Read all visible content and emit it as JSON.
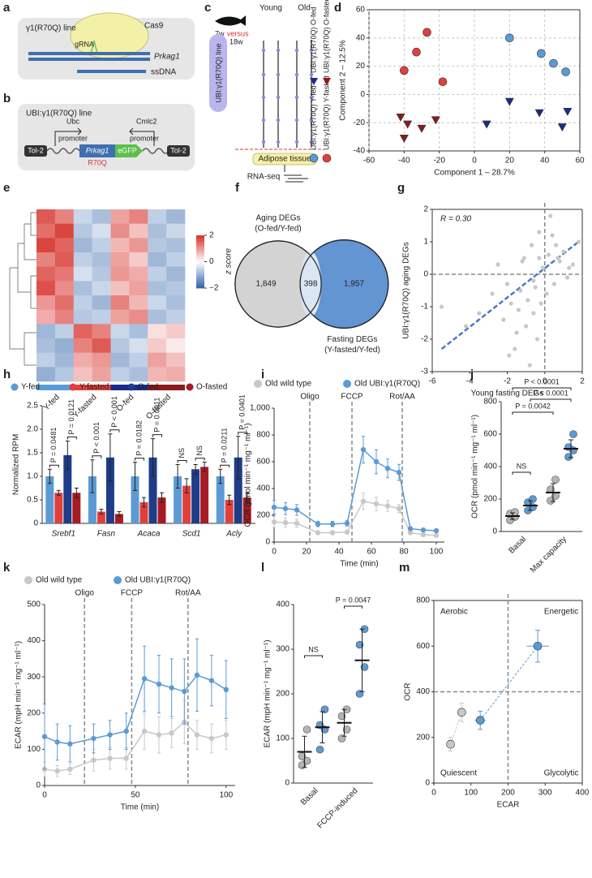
{
  "diagrams": {
    "a": {
      "label": "a",
      "title": "γ1(R70Q) line",
      "cas9": "Cas9",
      "grna": "gRNA",
      "gene": "Prkag1",
      "ssdna": "ssDNA"
    },
    "b": {
      "label": "b",
      "title": "UBI:γ1(R70Q) line",
      "promoter1": [
        "Ubc",
        "promoter"
      ],
      "promoter2": [
        "Cmlc2",
        "promoter"
      ],
      "tol2_left": "Tol-2",
      "gene": "Prkag1",
      "reporter": "eGFP",
      "tol2_right": "Tol-2",
      "mutation": "R70Q"
    },
    "c": {
      "label": "c",
      "groups": [
        "Young",
        "Old"
      ],
      "age_young": "7w",
      "versus": "versus",
      "age_old": "18w",
      "conditions": [
        "Fed",
        "Fasted",
        "Fed",
        "Fasted"
      ],
      "days": [
        "Day 1",
        "Day 2",
        "Day 3",
        "Day 4",
        "Day 5"
      ],
      "line": "UBI:γ1(R70Q) line",
      "tissue": "Adipose tissue",
      "assay": "RNA-seq"
    }
  },
  "chart_data": [
    {
      "label": "d",
      "type": "scatter",
      "xlabel": "Component 1 – 28.7%",
      "ylabel": "Component 2 – 12.5%",
      "xlim": [
        -60,
        60
      ],
      "xticks": [
        -60,
        -40,
        -20,
        0,
        20,
        40,
        60
      ],
      "ylim": [
        -40,
        60
      ],
      "yticks": [
        -40,
        -20,
        0,
        20,
        40,
        60
      ],
      "grid": true,
      "series": [
        {
          "name": "UBI:γ1(R70Q) Y-fed",
          "color": "#5b9bd5",
          "marker": "circle",
          "x": [
            20,
            38,
            45,
            52
          ],
          "y": [
            40,
            29,
            22,
            16
          ]
        },
        {
          "name": "UBI:γ1(R70Q) Y-fasted",
          "color": "#e0403a",
          "marker": "circle",
          "x": [
            -40,
            -33,
            -27,
            -18
          ],
          "y": [
            17,
            30,
            44,
            9
          ]
        },
        {
          "name": "UBI:γ1(R70Q) O-fed",
          "color": "#1a2a8c",
          "marker": "triangle",
          "x": [
            7,
            20,
            37,
            50,
            53
          ],
          "y": [
            -21,
            -5,
            -13,
            -23,
            -12
          ]
        },
        {
          "name": "UBI:γ1(R70Q) O-fasted",
          "color": "#8b1a1a",
          "marker": "triangle",
          "x": [
            -42,
            -40,
            -38,
            -30,
            -22
          ],
          "y": [
            -16,
            -31,
            -21,
            -24,
            -18
          ]
        }
      ]
    },
    {
      "label": "e",
      "type": "heatmap",
      "categories": [
        "Y-fed",
        "Y-fasted",
        "O-fed",
        "O-fasted"
      ],
      "colors": [
        "#5b9bd5",
        "#e0403a",
        "#1a2a8c",
        "#8b1a1a"
      ],
      "colorbar_label": "z score",
      "clim": [
        -2,
        2
      ],
      "cticks": [
        2,
        0,
        {
          "value": -2,
          "label": "−2"
        }
      ],
      "values": [
        [
          1.6,
          1.2,
          -0.5,
          -0.8,
          0.9,
          1.2,
          -0.6,
          -0.9
        ],
        [
          1.4,
          1.8,
          -0.7,
          -0.4,
          1.1,
          0.6,
          -0.8,
          -0.5
        ],
        [
          1.8,
          1.5,
          -0.9,
          -0.6,
          0.7,
          1.0,
          -0.7,
          -0.8
        ],
        [
          1.2,
          1.6,
          -0.6,
          -0.8,
          0.9,
          0.5,
          -0.9,
          -0.6
        ],
        [
          1.5,
          1.3,
          -0.4,
          -0.7,
          1.0,
          0.8,
          -0.6,
          -0.9
        ],
        [
          1.7,
          1.1,
          -0.8,
          -0.5,
          0.6,
          0.9,
          -0.8,
          -0.7
        ],
        [
          1.0,
          1.4,
          -0.6,
          -0.9,
          1.2,
          0.7,
          -0.5,
          -0.8
        ],
        [
          0.8,
          1.2,
          -0.7,
          -0.6,
          0.9,
          1.1,
          -0.8,
          -0.6
        ],
        [
          -0.9,
          -0.6,
          1.5,
          1.2,
          -0.5,
          -0.8,
          0.3,
          0.5
        ],
        [
          -0.8,
          -1.0,
          1.2,
          1.6,
          -0.7,
          -0.4,
          0.5,
          0.2
        ],
        [
          -0.6,
          -0.9,
          0.8,
          1.0,
          -0.9,
          -0.6,
          0.9,
          0.6
        ],
        [
          -1.0,
          -0.7,
          0.6,
          0.9,
          -0.6,
          -0.8,
          0.7,
          0.8
        ]
      ]
    },
    {
      "label": "f",
      "type": "venn",
      "sets": [
        {
          "name": "Aging DEGs",
          "subtitle": "(O-fed/Y-fed)",
          "color": "#d3d3d3"
        },
        {
          "name": "Fasting DEGs",
          "subtitle": "(Y-fasted/Y-fed)",
          "color": "#5b8fd0"
        }
      ],
      "values": [
        1849,
        398,
        1957
      ],
      "value_labels": [
        "1,849",
        "398",
        "1,957"
      ]
    },
    {
      "label": "g",
      "type": "scatter",
      "xlabel": "Young fasting DEGs",
      "ylabel": "UBI:γ1(R70Q) aging DEGs",
      "annotation": "R = 0.30",
      "xlim": [
        -6,
        2
      ],
      "xticks": [
        -6,
        -4,
        -2,
        0,
        2
      ],
      "ylim": [
        -3,
        2
      ],
      "yticks": [
        -3,
        -2,
        -1,
        0,
        1,
        2
      ],
      "hlines": [
        0
      ],
      "vlines": [
        0
      ],
      "fit_line": {
        "color": "#4a78c8",
        "x": [
          -5.5,
          1.8
        ],
        "y": [
          -2.3,
          1.0
        ]
      },
      "series": [
        {
          "color": "#c8c8c8",
          "marker": "circle",
          "x": [
            -5.5,
            -4.2,
            -3.5,
            -2.8,
            -2.5,
            -2.2,
            -2.0,
            -1.8,
            -1.6,
            -1.5,
            -1.3,
            -1.2,
            -1.0,
            -0.9,
            -0.8,
            -0.7,
            -0.6,
            -0.5,
            -0.4,
            -0.3,
            -0.2,
            -0.1,
            0.2,
            0.3,
            0.4,
            0.5,
            0.6,
            0.8,
            1.0,
            1.2,
            1.5,
            1.8,
            -1.9,
            -1.4,
            -1.1,
            -0.6,
            -0.3,
            0.1,
            0.7,
            1.3
          ],
          "y": [
            -1.0,
            -1.6,
            -1.2,
            -0.6,
            0.3,
            -1.4,
            -0.3,
            -0.9,
            -2.3,
            -1.8,
            -0.5,
            0.4,
            -1.6,
            -0.8,
            -2.8,
            0.9,
            -1.2,
            -0.4,
            -2.0,
            0.5,
            -0.9,
            0.2,
            0.6,
            1.8,
            1.2,
            -0.3,
            0.9,
            0.4,
            0.7,
            -0.1,
            0.3,
            1.0,
            -2.5,
            -1.1,
            0.5,
            -0.2,
            1.3,
            -0.6,
            0.5,
            0.2
          ]
        }
      ]
    },
    {
      "label": "h",
      "type": "bar",
      "ylabel": "Normalized RPM",
      "categories": [
        "Srebf1",
        "Fasn",
        "Acaca",
        "Scd1",
        "Acly"
      ],
      "ylim": [
        0,
        2.5
      ],
      "yticks": [
        0,
        0.5,
        {
          "value": 1,
          "label": "1.0"
        },
        1.5,
        {
          "value": 2,
          "label": "2.0"
        },
        2.5
      ],
      "series": [
        {
          "name": "Y-fed",
          "color": "#5b9bd5",
          "values": [
            1.0,
            1.0,
            1.0,
            1.0,
            1.0
          ],
          "errors": [
            0.15,
            0.35,
            0.3,
            0.25,
            0.15
          ]
        },
        {
          "name": "Y-fasted",
          "color": "#e0403a",
          "values": [
            0.65,
            0.25,
            0.45,
            0.8,
            0.5
          ],
          "errors": [
            0.05,
            0.05,
            0.1,
            0.15,
            0.1
          ]
        },
        {
          "name": "O-fed",
          "color": "#1f3c88",
          "values": [
            1.45,
            1.4,
            1.4,
            1.15,
            1.4
          ],
          "errors": [
            0.3,
            0.5,
            0.4,
            0.1,
            0.45
          ]
        },
        {
          "name": "O-fasted",
          "color": "#a51c24",
          "values": [
            0.65,
            0.2,
            0.55,
            1.2,
            0.55
          ],
          "errors": [
            0.1,
            0.05,
            0.1,
            0.1,
            0.1
          ]
        }
      ],
      "annotations": [
        "P = 0.0481",
        "P = 0.0121",
        "P < 0.001",
        "P < 0.001",
        "P = 0.0182",
        "P = 0.0011",
        "NS",
        "NS",
        "P = 0.0211",
        "P = 0.0401"
      ]
    },
    {
      "label": "i",
      "type": "line",
      "xlabel": "Time (min)",
      "ylabel": "OCR (pmol min⁻¹ mg⁻¹ ml⁻¹)",
      "x": [
        0,
        7,
        14,
        27,
        36,
        45,
        55,
        63,
        70,
        77,
        84,
        92,
        100
      ],
      "xlim": [
        0,
        105
      ],
      "xticks": [
        0,
        20,
        40,
        60,
        80,
        100
      ],
      "ylim": [
        0,
        1000
      ],
      "yticks": [
        0,
        200,
        400,
        600,
        800,
        {
          "value": 1000,
          "label": "1,000"
        }
      ],
      "vlines": [
        {
          "value": 22,
          "label": "Oligo"
        },
        {
          "value": 48,
          "label": "FCCP"
        },
        {
          "value": 79,
          "label": "Rot/AA"
        }
      ],
      "series": [
        {
          "name": "Old wild type",
          "color": "#c8c8c8",
          "values": [
            150,
            145,
            140,
            70,
            70,
            75,
            305,
            285,
            270,
            250,
            70,
            55,
            50
          ],
          "errors": [
            40,
            35,
            30,
            15,
            15,
            15,
            60,
            50,
            40,
            30,
            10,
            10,
            10
          ]
        },
        {
          "name": "Old UBI:γ1(R70Q)",
          "color": "#5b9bd5",
          "values": [
            260,
            250,
            240,
            135,
            135,
            140,
            690,
            600,
            550,
            520,
            100,
            90,
            85
          ],
          "errors": [
            50,
            45,
            40,
            20,
            20,
            20,
            100,
            90,
            70,
            60,
            15,
            10,
            10
          ]
        }
      ]
    },
    {
      "label": "j",
      "type": "strip",
      "ylabel": "OCR (pmol min⁻¹ mg⁻¹ ml⁻¹)",
      "categories": [
        "Basal",
        "Max capacity"
      ],
      "ylim": [
        0,
        800
      ],
      "yticks": [
        0,
        200,
        400,
        600,
        800
      ],
      "series": [
        {
          "color": "#b4b4b4",
          "points": [
            [
              70,
              90,
              110,
              120
            ],
            [
              190,
              220,
              260,
              320
            ]
          ],
          "means": [
            95,
            240
          ],
          "errors": [
            20,
            55
          ]
        },
        {
          "color": "#5b9bd5",
          "points": [
            [
              130,
              150,
              180,
              200
            ],
            [
              460,
              500,
              520,
              600
            ]
          ],
          "means": [
            160,
            510
          ],
          "errors": [
            30,
            55
          ]
        }
      ],
      "annotations": [
        "P < 0.0001",
        "P < 0.0001",
        "P = 0.0042",
        "NS"
      ]
    },
    {
      "label": "k",
      "type": "line",
      "xlabel": "Time (min)",
      "ylabel": "ECAR (mpH min⁻¹ mg⁻¹ ml⁻¹)",
      "x": [
        0,
        7,
        14,
        27,
        36,
        45,
        55,
        63,
        70,
        77,
        84,
        92,
        100
      ],
      "xlim": [
        0,
        105
      ],
      "xticks": [
        0,
        50,
        100
      ],
      "ylim": [
        0,
        500
      ],
      "yticks": [
        0,
        100,
        200,
        300,
        400,
        500
      ],
      "vlines": [
        {
          "value": 22,
          "label": "Oligo"
        },
        {
          "value": 48,
          "label": "FCCP"
        },
        {
          "value": 79,
          "label": "Rot/AA"
        }
      ],
      "series": [
        {
          "name": "Old wild type",
          "color": "#c8c8c8",
          "values": [
            45,
            40,
            45,
            70,
            75,
            75,
            150,
            140,
            145,
            175,
            140,
            130,
            140
          ],
          "errors": [
            20,
            15,
            15,
            30,
            30,
            30,
            50,
            50,
            40,
            60,
            40,
            40,
            40
          ]
        },
        {
          "name": "Old UBI:γ1(R70Q)",
          "color": "#5b9bd5",
          "values": [
            135,
            120,
            115,
            130,
            140,
            150,
            295,
            280,
            270,
            260,
            305,
            290,
            265
          ],
          "errors": [
            90,
            50,
            50,
            40,
            40,
            50,
            90,
            80,
            80,
            90,
            100,
            70,
            80
          ]
        }
      ]
    },
    {
      "label": "l",
      "type": "strip",
      "ylabel": "ECAR (mpH min⁻¹ mg⁻¹ ml⁻¹)",
      "categories": [
        "Basal",
        "FCCP-induced"
      ],
      "ylim": [
        0,
        400
      ],
      "yticks": [
        0,
        100,
        200,
        300,
        400
      ],
      "series": [
        {
          "color": "#b4b4b4",
          "points": [
            [
              40,
              50,
              60,
              120
            ],
            [
              100,
              120,
              150,
              165
            ]
          ],
          "means": [
            70,
            135
          ],
          "errors": [
            35,
            30
          ]
        },
        {
          "color": "#5b9bd5",
          "points": [
            [
              75,
              120,
              130,
              165
            ],
            [
              200,
              260,
              310,
              345
            ]
          ],
          "means": [
            125,
            275
          ],
          "errors": [
            35,
            70
          ]
        }
      ],
      "annotations": [
        "P = 0.0047",
        "NS"
      ]
    },
    {
      "label": "m",
      "type": "scatter",
      "xlabel": "ECAR",
      "ylabel": "OCR",
      "xlim": [
        0,
        400
      ],
      "xticks": [
        0,
        100,
        200,
        300,
        400
      ],
      "ylim": [
        0,
        800
      ],
      "yticks": [
        0,
        200,
        400,
        600,
        800
      ],
      "vlines": [
        200
      ],
      "hlines": [
        400
      ],
      "quadrant_labels": [
        "Aerobic",
        "Energetic",
        "Quiescent",
        "Glycolytic"
      ],
      "series": [
        {
          "color": "#c8c8c8",
          "marker": "circle",
          "x": [
            45,
            75
          ],
          "y": [
            170,
            310
          ],
          "xerr": [
            10,
            12
          ],
          "yerr": [
            30,
            40
          ]
        },
        {
          "color": "#5b9bd5",
          "marker": "circle",
          "x": [
            125,
            280
          ],
          "y": [
            275,
            600
          ],
          "xerr": [
            15,
            30
          ],
          "yerr": [
            40,
            70
          ]
        }
      ]
    }
  ]
}
